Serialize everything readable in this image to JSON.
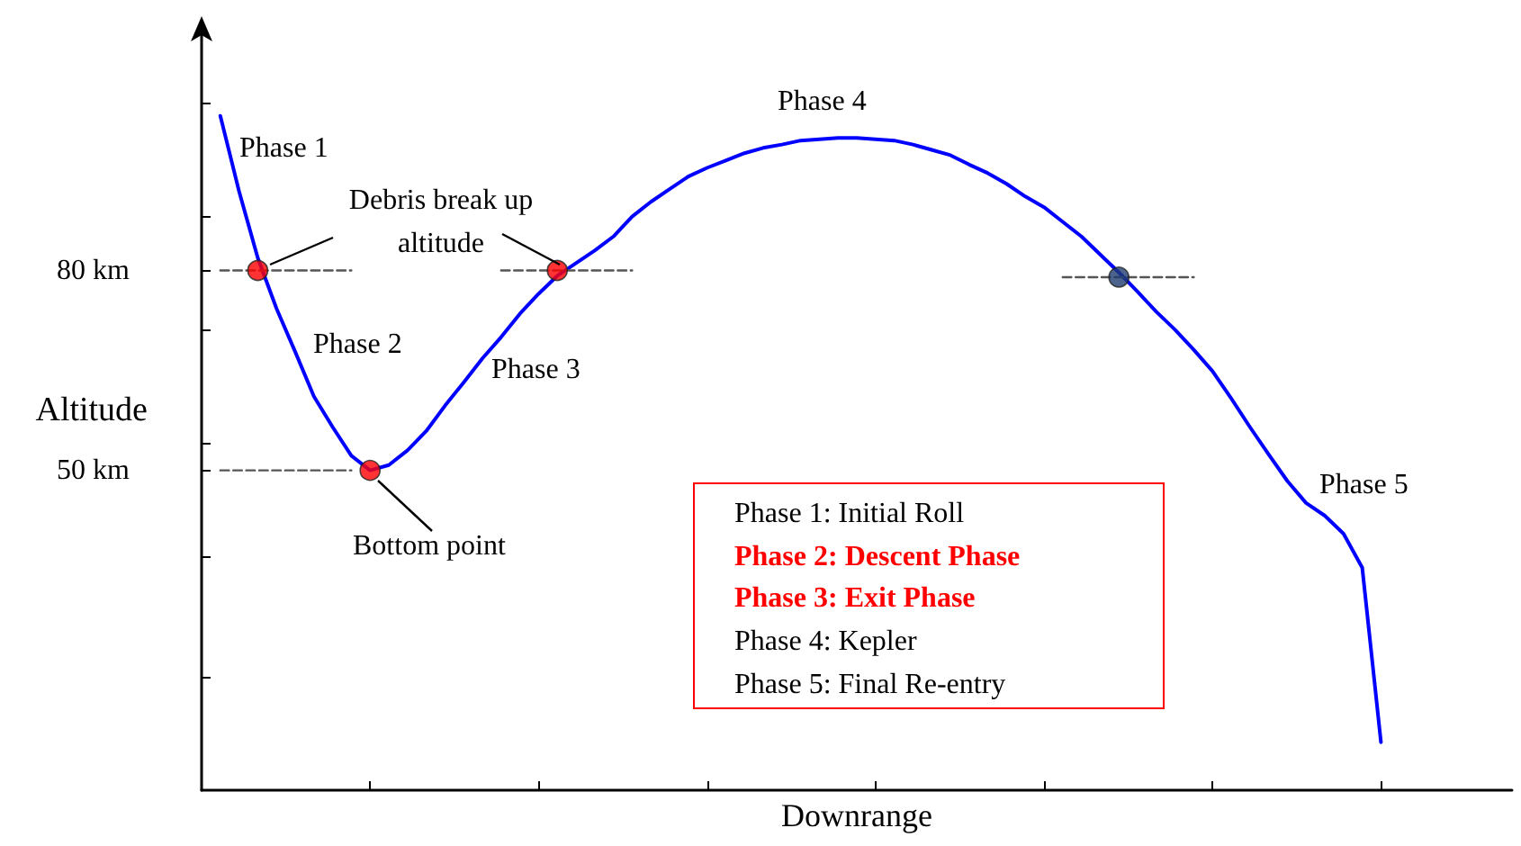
{
  "chart_data": {
    "type": "line",
    "xlabel": "Downrange",
    "ylabel": "Altitude",
    "categories": [
      null,
      null,
      null,
      null,
      null,
      null,
      null,
      null,
      null,
      null,
      null,
      null,
      null,
      null,
      null,
      null,
      null,
      null,
      null,
      null,
      null,
      null,
      null,
      null,
      null,
      null,
      null,
      null,
      null,
      null,
      null,
      null,
      null,
      null,
      null,
      null,
      null,
      null,
      null,
      null,
      null,
      null,
      null,
      null,
      null,
      null,
      null,
      null,
      null,
      null,
      null,
      null,
      null,
      null,
      null,
      null,
      null,
      null,
      null,
      null,
      null,
      null,
      null,
      null,
      null,
      null,
      null,
      null,
      null,
      null,
      null
    ],
    "series": [
      {
        "color": "#0000ff",
        "marker": "none",
        "line_style": "solid",
        "values": [
          null,
          103.2,
          91.9,
          81.9,
          74.3,
          67.8,
          61.1,
          56.5,
          52.2,
          50.0,
          50.8,
          53.0,
          55.9,
          59.7,
          63.2,
          66.8,
          70.0,
          73.5,
          76.5,
          79.2,
          81.1,
          83.0,
          85.1,
          88.1,
          90.3,
          92.2,
          94.1,
          95.4,
          96.5,
          97.6,
          98.4,
          98.9,
          99.5,
          99.7,
          99.9,
          99.9,
          99.7,
          99.5,
          98.9,
          98.1,
          97.3,
          95.9,
          94.6,
          93.0,
          91.1,
          89.5,
          87.3,
          85.1,
          82.4,
          79.7,
          76.8,
          73.8,
          71.1,
          68.1,
          64.9,
          60.8,
          56.5,
          52.4,
          48.4,
          45.1,
          43.2,
          40.5,
          35.4,
          9.2,
          null,
          null,
          null,
          null,
          null,
          null,
          null
        ]
      },
      {
        "type": "line",
        "color": "#555555",
        "marker": "none",
        "line_style": "dashed",
        "values": [
          null,
          80,
          80,
          80,
          80,
          80,
          80,
          80,
          80,
          null,
          null,
          null,
          null,
          null,
          null,
          null,
          80,
          80,
          80,
          80,
          80,
          80,
          80,
          80,
          null,
          null,
          null,
          null,
          null,
          null,
          null,
          null,
          null,
          null,
          null,
          null,
          null,
          null,
          null,
          null,
          null,
          null,
          null,
          null,
          null,
          null,
          79,
          79,
          79,
          79,
          79,
          79,
          79,
          79,
          null,
          null,
          null,
          null,
          null,
          null,
          null,
          null,
          null,
          null,
          null,
          null,
          null,
          null,
          null,
          null,
          null
        ]
      },
      {
        "type": "line",
        "color": "#555555",
        "marker": "none",
        "line_style": "dashed",
        "values": [
          null,
          50,
          50,
          50,
          50,
          50,
          50,
          50,
          50,
          null,
          null,
          null,
          null,
          null,
          null,
          null,
          null,
          null,
          null,
          null,
          null,
          null,
          null,
          null,
          null,
          null,
          null,
          null,
          null,
          null,
          null,
          null,
          null,
          null,
          null,
          null,
          null,
          null,
          null,
          null,
          null,
          null,
          null,
          null,
          null,
          null,
          null,
          null,
          null,
          null,
          null,
          null,
          null,
          null,
          null,
          null,
          null,
          null,
          null,
          null,
          null,
          null,
          null,
          null,
          null,
          null,
          null,
          null,
          null,
          null,
          null
        ]
      },
      {
        "type": "scatter",
        "color": "#ff0000",
        "marker": "circle",
        "values": [
          null,
          null,
          null,
          80,
          null,
          null,
          null,
          null,
          null,
          50,
          null,
          null,
          null,
          null,
          null,
          null,
          null,
          null,
          null,
          80,
          null,
          null,
          null,
          null,
          null,
          null,
          null,
          null,
          null,
          null,
          null,
          null,
          null,
          null,
          null,
          null,
          null,
          null,
          null,
          null,
          null,
          null,
          null,
          null,
          null,
          null,
          null,
          null,
          null,
          null,
          null,
          null,
          null,
          null,
          null,
          null,
          null,
          null,
          null,
          null,
          null,
          null,
          null,
          null,
          null,
          null,
          null,
          null,
          null,
          null,
          null
        ]
      },
      {
        "type": "scatter",
        "color": "#1f3c6e",
        "marker": "circle",
        "values": [
          null,
          null,
          null,
          null,
          null,
          null,
          null,
          null,
          null,
          null,
          null,
          null,
          null,
          null,
          null,
          null,
          null,
          null,
          null,
          null,
          null,
          null,
          null,
          null,
          null,
          null,
          null,
          null,
          null,
          null,
          null,
          null,
          null,
          null,
          null,
          null,
          null,
          null,
          null,
          null,
          null,
          null,
          null,
          null,
          null,
          null,
          null,
          null,
          null,
          79,
          null,
          null,
          null,
          null,
          null,
          null,
          null,
          null,
          null,
          null,
          null,
          null,
          null,
          null,
          null,
          null,
          null,
          null,
          null,
          null,
          null
        ]
      }
    ],
    "ylim": [
      2,
      116
    ],
    "yticks": [
      {
        "value": 19,
        "label": null
      },
      {
        "value": 37,
        "label": null
      },
      {
        "value": 50,
        "label": "50 km"
      },
      {
        "value": 54,
        "label": null
      },
      {
        "value": 71,
        "label": null
      },
      {
        "value": 80,
        "label": "80 km"
      },
      {
        "value": 88,
        "label": null
      },
      {
        "value": 105,
        "label": null
      }
    ],
    "tick_labels": "y",
    "annotations": [
      "Phase 1",
      "Debris break up altitude",
      "Phase 2",
      "Phase 3",
      "Bottom point",
      "Phase 4",
      "Phase 5",
      "Phase 1: Initial Roll",
      "Phase 2: Descent Phase",
      "Phase 3: Exit Phase",
      "Phase 4: Kepler",
      "Phase 5: Final Re-entry"
    ]
  }
}
